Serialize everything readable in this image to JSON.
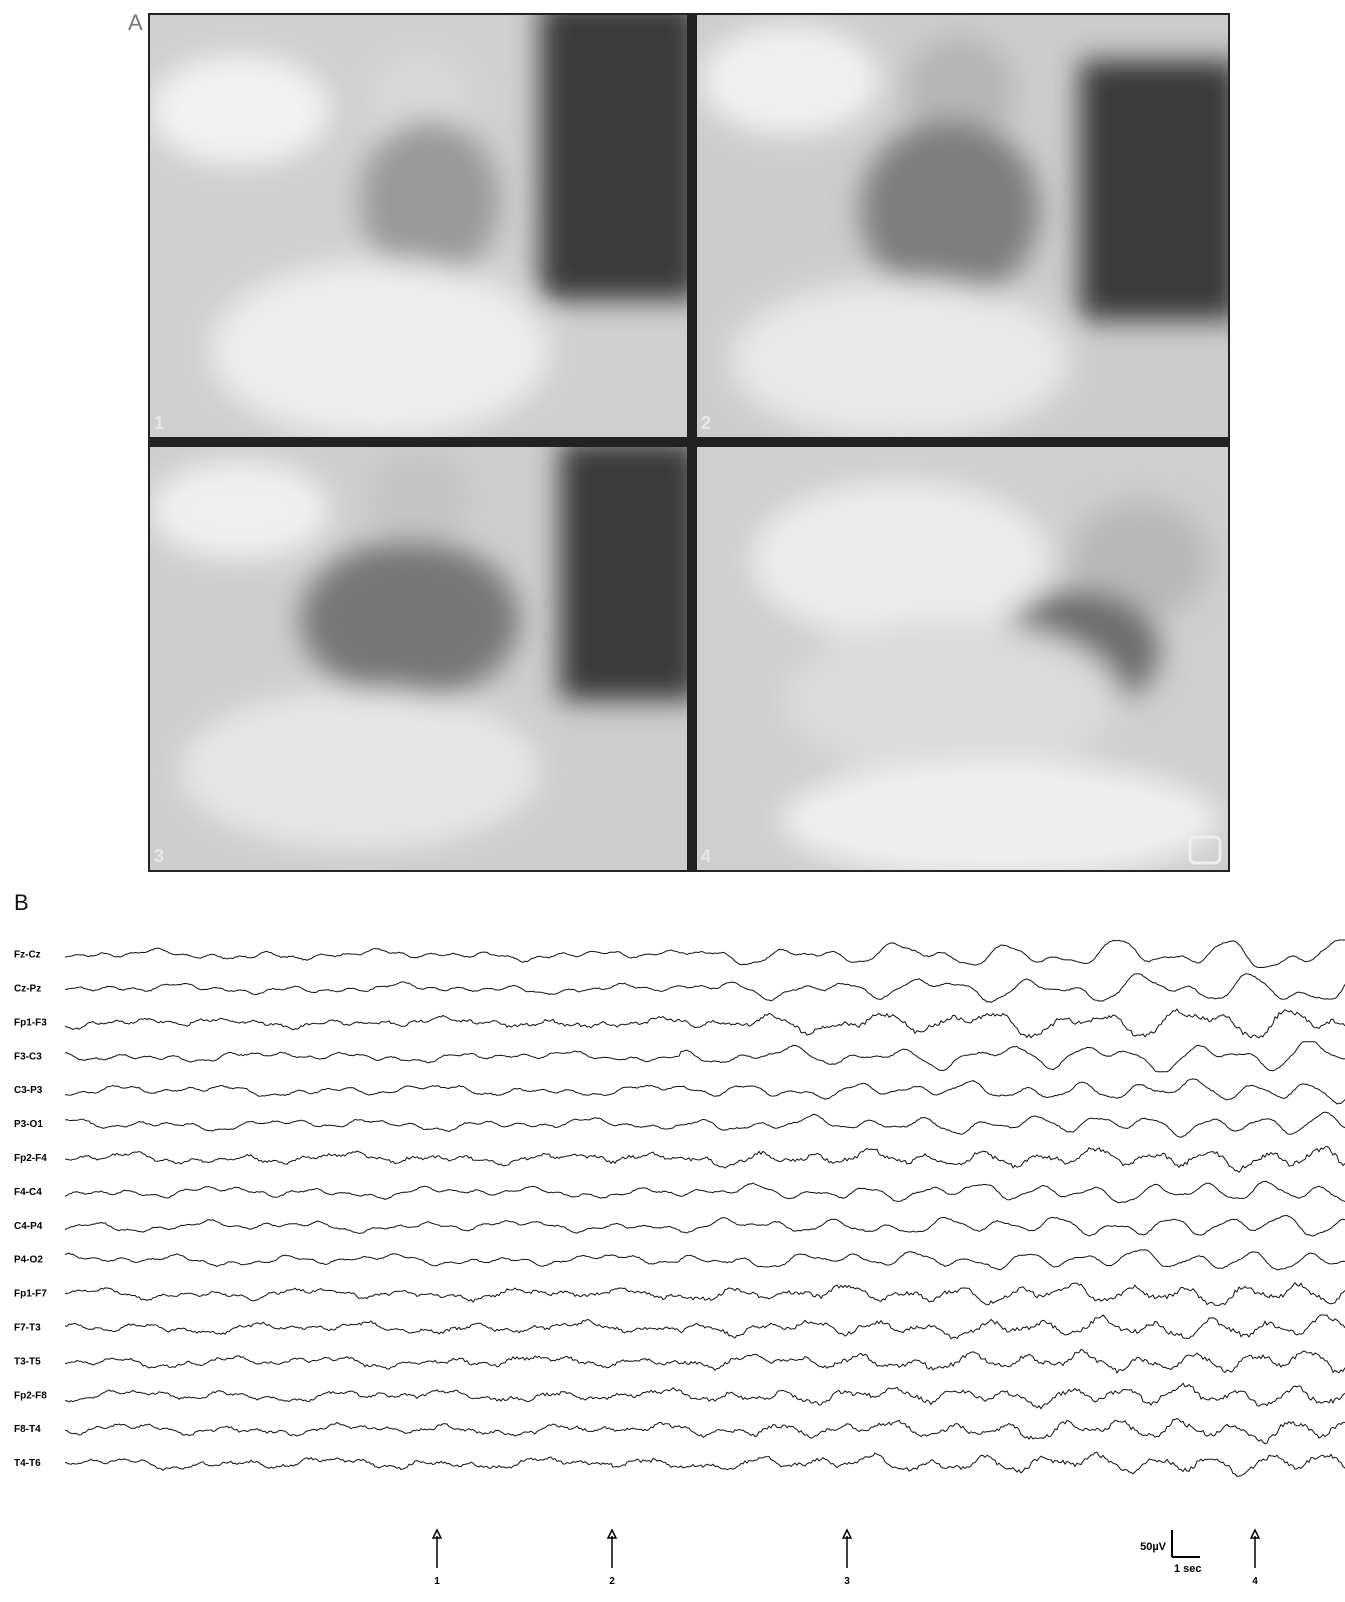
{
  "panel_a": {
    "label": "A",
    "frames": [
      "1",
      "2",
      "3",
      "4"
    ]
  },
  "panel_b": {
    "label": "B",
    "channels": [
      "Fz-Cz",
      "Cz-Pz",
      "Fp1-F3",
      "F3-C3",
      "C3-P3",
      "P3-O1",
      "Fp2-F4",
      "F4-C4",
      "C4-P4",
      "P4-O2",
      "Fp1-F7",
      "F7-T3",
      "T3-T5",
      "Fp2-F8",
      "F8-T4",
      "T4-T6"
    ],
    "markers": [
      "1",
      "2",
      "3",
      "4"
    ],
    "scale": {
      "amplitude": "50µV",
      "time": "1 sec"
    }
  }
}
